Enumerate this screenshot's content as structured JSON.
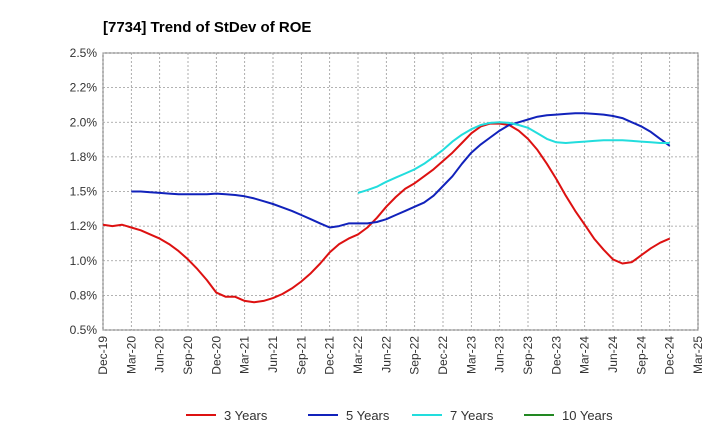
{
  "chart_data": {
    "type": "line",
    "title": "[7734]  Trend of StDev of ROE",
    "xlabel": "",
    "ylabel": "",
    "ylim": [
      0.5,
      2.5
    ],
    "yticks": [
      "0.5%",
      "0.8%",
      "1.0%",
      "1.2%",
      "1.5%",
      "1.8%",
      "2.0%",
      "2.2%",
      "2.5%"
    ],
    "ytick_values": [
      0.5,
      0.75,
      1.0,
      1.25,
      1.5,
      1.75,
      2.0,
      2.25,
      2.5
    ],
    "x_categories": [
      "Dec-19",
      "Mar-20",
      "Jun-20",
      "Sep-20",
      "Dec-20",
      "Mar-21",
      "Jun-21",
      "Sep-21",
      "Dec-21",
      "Mar-22",
      "Jun-22",
      "Sep-22",
      "Dec-22",
      "Mar-23",
      "Jun-23",
      "Sep-23",
      "Dec-23",
      "Mar-24",
      "Jun-24",
      "Sep-24",
      "Dec-24",
      "Mar-25"
    ],
    "grid": true,
    "legend_position": "bottom",
    "series": [
      {
        "name": "3 Years",
        "color": "#dd1111",
        "x": [
          "Dec-19",
          "Jan-20",
          "Feb-20",
          "Mar-20",
          "Apr-20",
          "May-20",
          "Jun-20",
          "Jul-20",
          "Aug-20",
          "Sep-20",
          "Oct-20",
          "Nov-20",
          "Dec-20",
          "Jan-21",
          "Feb-21",
          "Mar-21",
          "Apr-21",
          "May-21",
          "Jun-21",
          "Jul-21",
          "Aug-21",
          "Sep-21",
          "Oct-21",
          "Nov-21",
          "Dec-21",
          "Jan-22",
          "Feb-22",
          "Mar-22",
          "Apr-22",
          "May-22",
          "Jun-22",
          "Jul-22",
          "Aug-22",
          "Sep-22",
          "Oct-22",
          "Nov-22",
          "Dec-22",
          "Jan-23",
          "Feb-23",
          "Mar-23",
          "Apr-23",
          "May-23",
          "Jun-23",
          "Jul-23",
          "Aug-23",
          "Sep-23",
          "Oct-23",
          "Nov-23",
          "Dec-23",
          "Jan-24",
          "Feb-24",
          "Mar-24",
          "Apr-24",
          "May-24",
          "Jun-24",
          "Jul-24",
          "Aug-24",
          "Sep-24",
          "Oct-24",
          "Nov-24",
          "Dec-24"
        ],
        "values": [
          1.26,
          1.25,
          1.26,
          1.24,
          1.22,
          1.19,
          1.16,
          1.12,
          1.07,
          1.01,
          0.94,
          0.86,
          0.77,
          0.74,
          0.74,
          0.71,
          0.7,
          0.71,
          0.73,
          0.76,
          0.8,
          0.85,
          0.91,
          0.98,
          1.06,
          1.12,
          1.16,
          1.19,
          1.24,
          1.31,
          1.39,
          1.46,
          1.52,
          1.56,
          1.61,
          1.66,
          1.72,
          1.78,
          1.85,
          1.92,
          1.97,
          1.99,
          1.99,
          1.98,
          1.94,
          1.88,
          1.8,
          1.7,
          1.59,
          1.47,
          1.36,
          1.26,
          1.16,
          1.08,
          1.01,
          0.98,
          0.99,
          1.04,
          1.09,
          1.13,
          1.16
        ]
      },
      {
        "name": "5 Years",
        "color": "#1122bb",
        "x": [
          "Mar-20",
          "Apr-20",
          "May-20",
          "Jun-20",
          "Jul-20",
          "Aug-20",
          "Sep-20",
          "Oct-20",
          "Nov-20",
          "Dec-20",
          "Jan-21",
          "Feb-21",
          "Mar-21",
          "Apr-21",
          "May-21",
          "Jun-21",
          "Jul-21",
          "Aug-21",
          "Sep-21",
          "Oct-21",
          "Nov-21",
          "Dec-21",
          "Jan-22",
          "Feb-22",
          "Mar-22",
          "Apr-22",
          "May-22",
          "Jun-22",
          "Jul-22",
          "Aug-22",
          "Sep-22",
          "Oct-22",
          "Nov-22",
          "Dec-22",
          "Jan-23",
          "Feb-23",
          "Mar-23",
          "Apr-23",
          "May-23",
          "Jun-23",
          "Jul-23",
          "Aug-23",
          "Sep-23",
          "Oct-23",
          "Nov-23",
          "Dec-23",
          "Jan-24",
          "Feb-24",
          "Mar-24",
          "Apr-24",
          "May-24",
          "Jun-24",
          "Jul-24",
          "Aug-24",
          "Sep-24",
          "Oct-24",
          "Nov-24",
          "Dec-24"
        ],
        "values": [
          1.5,
          1.5,
          1.495,
          1.49,
          1.485,
          1.48,
          1.48,
          1.48,
          1.48,
          1.485,
          1.48,
          1.475,
          1.465,
          1.45,
          1.43,
          1.41,
          1.385,
          1.36,
          1.33,
          1.3,
          1.27,
          1.24,
          1.25,
          1.27,
          1.27,
          1.27,
          1.28,
          1.3,
          1.33,
          1.36,
          1.39,
          1.42,
          1.47,
          1.54,
          1.61,
          1.7,
          1.78,
          1.84,
          1.89,
          1.94,
          1.98,
          2.0,
          2.02,
          2.04,
          2.05,
          2.055,
          2.06,
          2.065,
          2.065,
          2.06,
          2.055,
          2.045,
          2.03,
          2.0,
          1.97,
          1.93,
          1.88,
          1.83
        ]
      },
      {
        "name": "7 Years",
        "color": "#22dddd",
        "x": [
          "Mar-22",
          "Apr-22",
          "May-22",
          "Jun-22",
          "Jul-22",
          "Aug-22",
          "Sep-22",
          "Oct-22",
          "Nov-22",
          "Dec-22",
          "Jan-23",
          "Feb-23",
          "Mar-23",
          "Apr-23",
          "May-23",
          "Jun-23",
          "Jul-23",
          "Aug-23",
          "Sep-23",
          "Oct-23",
          "Nov-23",
          "Dec-23",
          "Jan-24",
          "Feb-24",
          "Mar-24",
          "Apr-24",
          "May-24",
          "Jun-24",
          "Jul-24",
          "Aug-24",
          "Sep-24",
          "Oct-24",
          "Nov-24",
          "Dec-24"
        ],
        "values": [
          1.49,
          1.51,
          1.535,
          1.57,
          1.6,
          1.63,
          1.66,
          1.7,
          1.75,
          1.8,
          1.86,
          1.91,
          1.95,
          1.98,
          1.995,
          2.0,
          1.995,
          1.98,
          1.96,
          1.92,
          1.88,
          1.855,
          1.85,
          1.855,
          1.86,
          1.865,
          1.87,
          1.87,
          1.87,
          1.865,
          1.86,
          1.855,
          1.85,
          1.85
        ]
      },
      {
        "name": "10 Years",
        "color": "#228822",
        "x": [],
        "values": []
      }
    ]
  }
}
